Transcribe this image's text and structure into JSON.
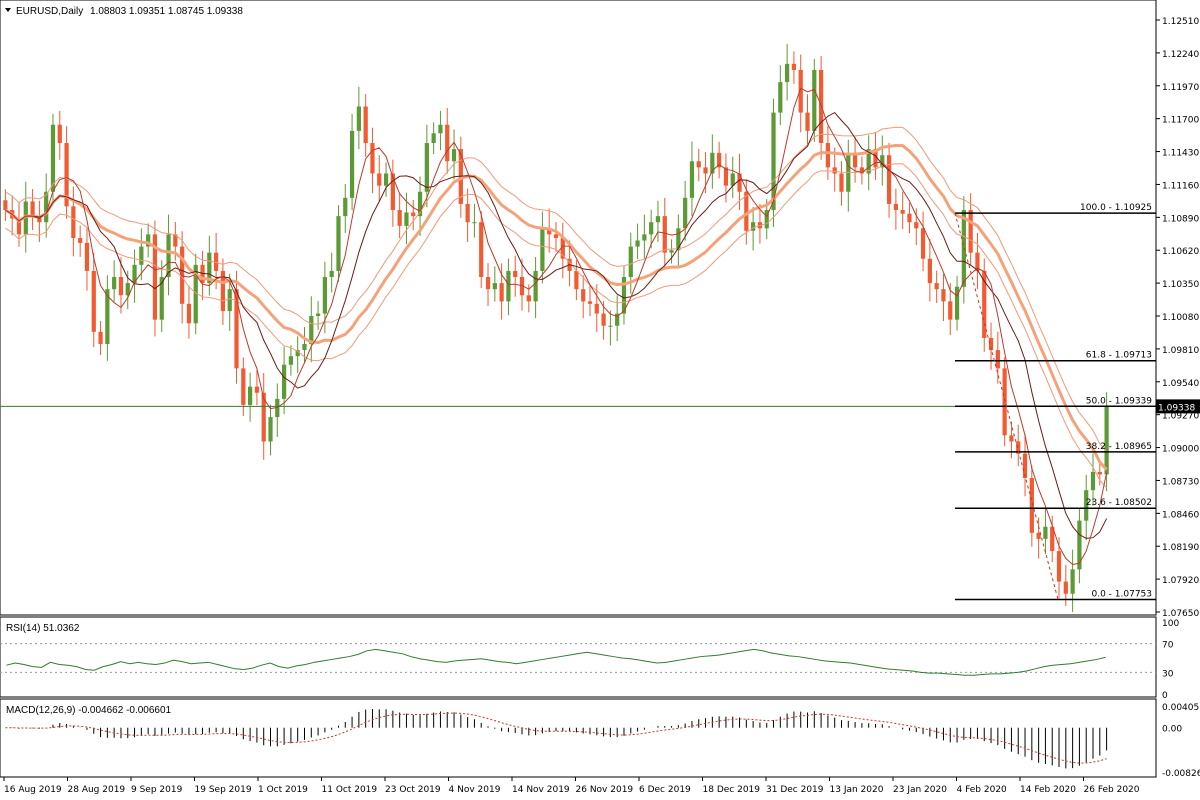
{
  "header": {
    "symbol_tf": "EURUSD,Daily",
    "ohlc": "1.08803 1.09351 1.08745 1.09338"
  },
  "colors": {
    "bull": "#5b9a35",
    "bear": "#f25a32",
    "ma_thick": "#f5a27a",
    "ma_thin": "#f1997a",
    "ma_dark": "#6d1a16",
    "ma_red": "#c0392b",
    "rsi": "#2e7d32",
    "macd_hist": "#000000",
    "macd_signal": "#c0392b",
    "grid": "#000000",
    "price_line": "#2f7d2f"
  },
  "chart_data": [
    {
      "type": "candlestick",
      "title": "EURUSD,Daily",
      "y_ticks": [
        "1.12510",
        "1.12240",
        "1.11970",
        "1.11700",
        "1.11430",
        "1.11160",
        "1.10890",
        "1.10620",
        "1.10350",
        "1.10080",
        "1.09810",
        "1.09540",
        "1.09270",
        "1.09000",
        "1.08730",
        "1.08460",
        "1.08190",
        "1.07920",
        "1.07650"
      ],
      "ylim": [
        1.0765,
        1.1251
      ],
      "x_ticks": [
        "16 Aug 2019",
        "28 Aug 2019",
        "9 Sep 2019",
        "19 Sep 2019",
        "1 Oct 2019",
        "11 Oct 2019",
        "23 Oct 2019",
        "4 Nov 2019",
        "14 Nov 2019",
        "26 Nov 2019",
        "6 Dec 2019",
        "18 Dec 2019",
        "31 Dec 2019",
        "13 Jan 2020",
        "23 Jan 2020",
        "4 Feb 2020",
        "14 Feb 2020",
        "26 Feb 2020"
      ],
      "current_price": "1.09338",
      "fib_levels": [
        {
          "label": "100.0 - 1.10925",
          "value": 1.10925
        },
        {
          "label": "61.8 - 1.09713",
          "value": 1.09713
        },
        {
          "label": "50.0 - 1.09339",
          "value": 1.09339
        },
        {
          "label": "38.2 - 1.08965",
          "value": 1.08965
        },
        {
          "label": "23.6 - 1.08502",
          "value": 1.08502
        },
        {
          "label": "0.0 - 1.07753",
          "value": 1.07753
        }
      ],
      "close_series": [
        1.1095,
        1.1088,
        1.1075,
        1.1102,
        1.109,
        1.1085,
        1.111,
        1.1165,
        1.115,
        1.1098,
        1.1072,
        1.1068,
        1.1045,
        1.0995,
        1.0985,
        1.103,
        1.104,
        1.1025,
        1.1035,
        1.105,
        1.1065,
        1.1075,
        1.1005,
        1.104,
        1.1075,
        1.1065,
        1.1018,
        1.1002,
        1.105,
        1.1035,
        1.106,
        1.1045,
        1.1012,
        1.103,
        1.0965,
        1.0935,
        1.095,
        1.0945,
        1.0905,
        1.0925,
        1.094,
        1.0968,
        1.0975,
        1.098,
        1.0985,
        1.1008,
        1.101,
        1.104,
        1.1045,
        1.109,
        1.1105,
        1.116,
        1.118,
        1.115,
        1.1125,
        1.1115,
        1.1125,
        1.1095,
        1.1082,
        1.1093,
        1.109,
        1.111,
        1.115,
        1.1158,
        1.1165,
        1.1135,
        1.1145,
        1.11,
        1.1085,
        1.1085,
        1.104,
        1.103,
        1.1035,
        1.102,
        1.1045,
        1.104,
        1.1025,
        1.102,
        1.1045,
        1.108,
        1.1075,
        1.1072,
        1.1055,
        1.1045,
        1.103,
        1.102,
        1.1018,
        1.101,
        1.1,
        1.1,
        1.101,
        1.104,
        1.1065,
        1.107,
        1.1075,
        1.1085,
        1.109,
        1.106,
        1.1062,
        1.108,
        1.1105,
        1.1135,
        1.113,
        1.1125,
        1.1142,
        1.113,
        1.1115,
        1.1125,
        1.111,
        1.1078,
        1.1085,
        1.108,
        1.1095,
        1.1175,
        1.12,
        1.1215,
        1.121,
        1.1175,
        1.116,
        1.121,
        1.115,
        1.113,
        1.1125,
        1.111,
        1.114,
        1.113,
        1.1125,
        1.1145,
        1.113,
        1.114,
        1.11,
        1.1095,
        1.1092,
        1.1085,
        1.108,
        1.1055,
        1.1035,
        1.103,
        1.102,
        1.1005,
        1.1032,
        1.1095,
        1.106,
        1.1045,
        1.099,
        1.098,
        1.0965,
        1.091,
        1.0905,
        1.0895,
        1.0875,
        1.083,
        1.0825,
        1.0835,
        1.0815,
        1.079,
        1.078,
        1.08,
        1.084,
        1.0865,
        1.088,
        1.0878,
        1.0934
      ],
      "ma_thick_label": "",
      "ma_thin_label": ""
    },
    {
      "type": "line",
      "title": "RSI(14) 51.0362",
      "ylim": [
        0,
        100
      ],
      "y_ticks": [
        "100",
        "70",
        "30",
        "0"
      ],
      "levels": [
        70,
        30
      ],
      "values": [
        40,
        43,
        41,
        38,
        37,
        44,
        41,
        40,
        38,
        34,
        33,
        38,
        41,
        45,
        42,
        44,
        42,
        41,
        43,
        47,
        45,
        42,
        43,
        44,
        41,
        38,
        35,
        34,
        36,
        40,
        43,
        38,
        36,
        39,
        41,
        44,
        46,
        48,
        50,
        52,
        55,
        60,
        62,
        60,
        58,
        56,
        52,
        49,
        47,
        45,
        44,
        46,
        47,
        48,
        49,
        47,
        45,
        44,
        42,
        44,
        46,
        48,
        50,
        52,
        54,
        56,
        58,
        56,
        54,
        52,
        50,
        49,
        47,
        45,
        43,
        44,
        46,
        48,
        50,
        52,
        53,
        54,
        56,
        58,
        60,
        62,
        60,
        57,
        55,
        53,
        52,
        50,
        48,
        46,
        45,
        44,
        43,
        41,
        39,
        37,
        35,
        34,
        33,
        32,
        30,
        29,
        29,
        28,
        27,
        26,
        26,
        27,
        28,
        28,
        29,
        30,
        32,
        35,
        38,
        40,
        41,
        42,
        44,
        46,
        48,
        51.04
      ]
    },
    {
      "type": "bar",
      "title": "MACD(12,26,9) -0.004662 -0.006601",
      "y_ticks": [
        "0.00405",
        "0.00",
        "-0.00826"
      ],
      "ylim": [
        -0.00826,
        0.00405
      ]
    }
  ]
}
